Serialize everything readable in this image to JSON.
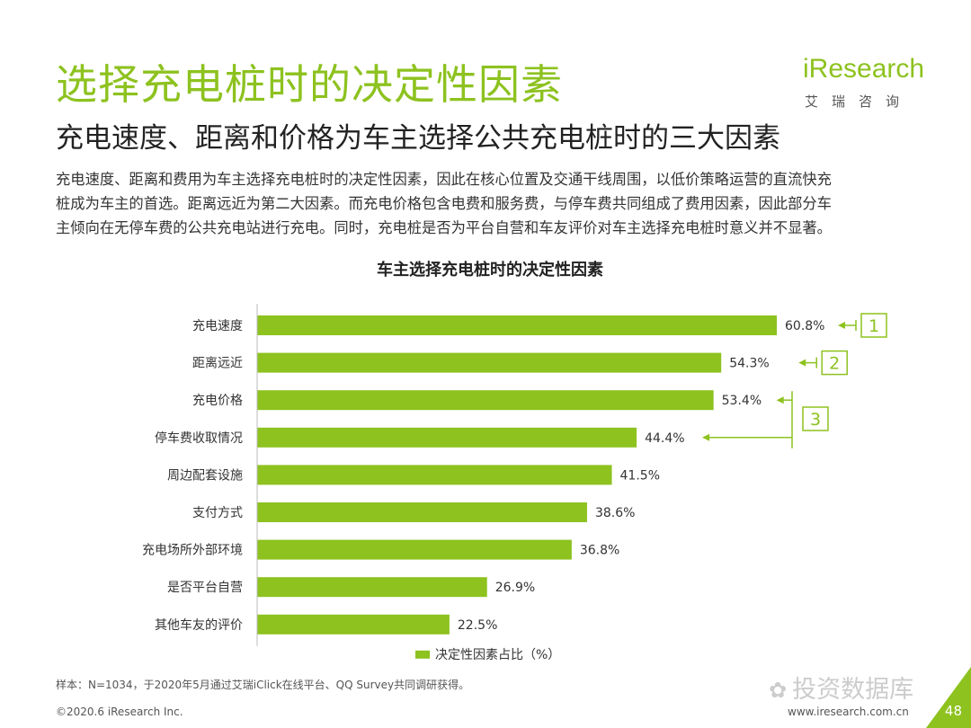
{
  "page": {
    "title": "选择充电桩时的决定性因素",
    "subtitle": "充电速度、距离和价格为车主选择公共充电桩时的三大因素",
    "description_lines": [
      "充电速度、距离和费用为车主选择充电桩时的决定性因素，因此在核心位置及交通干线周围，以低价策略运营的直流快充",
      "桩成为车主的首选。距离远近为第二大因素。而充电价格包含电费和服务费，与停车费共同组成了费用因素，因此部分车",
      "主倾向在无停车费的公共充电站进行充电。同时，充电桩是否为平台自营和车友评价对车主选择充电桩时意义并不显著。"
    ],
    "footnote": "样本：N=1034，于2020年5月通过艾瑞iClick在线平台、QQ Survey共同调研获得。",
    "copyright": "©2020.6 iResearch Inc.",
    "website": "www.iresearch.com.cn",
    "page_number": "48",
    "watermark": "投资数据库"
  },
  "logo": {
    "main": "iResearch",
    "sub": "艾瑞咨询"
  },
  "colors": {
    "accent": "#8dc21f",
    "text": "#333333"
  },
  "chart_data": {
    "type": "bar",
    "orientation": "horizontal",
    "title": "车主选择充电桩时的决定性因素",
    "categories": [
      "充电速度",
      "距离远近",
      "充电价格",
      "停车费收取情况",
      "周边配套设施",
      "支付方式",
      "充电场所外部环境",
      "是否平台自营",
      "其他车友的评价"
    ],
    "series": [
      {
        "name": "决定性因素占比（%）",
        "values": [
          60.8,
          54.3,
          53.4,
          44.4,
          41.5,
          38.6,
          36.8,
          26.9,
          22.5
        ]
      }
    ],
    "value_labels": [
      "60.8%",
      "54.3%",
      "53.4%",
      "44.4%",
      "41.5%",
      "38.6%",
      "36.8%",
      "26.9%",
      "22.5%"
    ],
    "xlim": [
      0,
      70
    ],
    "legend": "bottom-center",
    "annotations": [
      {
        "label": "1",
        "targets": [
          "充电速度"
        ]
      },
      {
        "label": "2",
        "targets": [
          "距离远近"
        ]
      },
      {
        "label": "3",
        "targets": [
          "充电价格",
          "停车费收取情况"
        ]
      }
    ]
  }
}
